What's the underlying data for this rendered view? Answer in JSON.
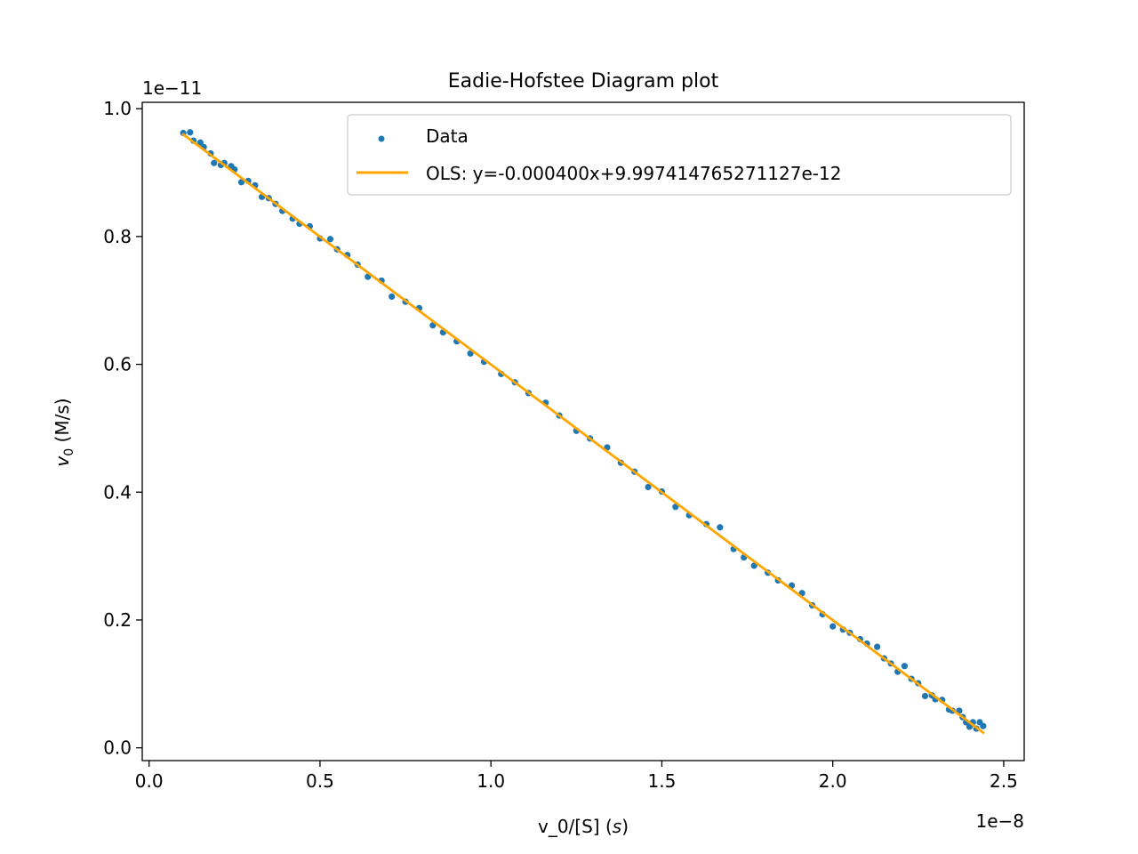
{
  "chart_data": {
    "type": "scatter",
    "title": "Eadie-Hofstee Diagram plot",
    "xlabel": "v_0/[S] (",
    "xlabel_italic": "s",
    "xlabel_close": ")",
    "ylabel_v": "v",
    "ylabel_sub": "0",
    "ylabel_unit": " (M/s)",
    "x_offset_text": "1e−8",
    "y_offset_text": "1e−11",
    "xlim": [
      -0.02,
      2.56
    ],
    "ylim": [
      -0.02,
      1.01
    ],
    "x_ticks": [
      0.0,
      0.5,
      1.0,
      1.5,
      2.0,
      2.5
    ],
    "x_tick_labels": [
      "0.0",
      "0.5",
      "1.0",
      "1.5",
      "2.0",
      "2.5"
    ],
    "y_ticks": [
      0.0,
      0.2,
      0.4,
      0.6,
      0.8,
      1.0
    ],
    "y_tick_labels": [
      "0.0",
      "0.2",
      "0.4",
      "0.6",
      "0.8",
      "1.0"
    ],
    "x_scale_note": "x values in units of 1e-8",
    "y_scale_note": "y values in units of 1e-11",
    "grid": false,
    "legend_position": "top-right",
    "series": [
      {
        "name": "Data",
        "kind": "scatter",
        "color": "#1f77b4",
        "points": [
          [
            0.1,
            0.962
          ],
          [
            0.12,
            0.963
          ],
          [
            0.13,
            0.95
          ],
          [
            0.15,
            0.947
          ],
          [
            0.16,
            0.94
          ],
          [
            0.18,
            0.93
          ],
          [
            0.19,
            0.915
          ],
          [
            0.21,
            0.912
          ],
          [
            0.22,
            0.915
          ],
          [
            0.24,
            0.91
          ],
          [
            0.25,
            0.905
          ],
          [
            0.27,
            0.885
          ],
          [
            0.29,
            0.887
          ],
          [
            0.31,
            0.88
          ],
          [
            0.33,
            0.862
          ],
          [
            0.35,
            0.86
          ],
          [
            0.37,
            0.851
          ],
          [
            0.39,
            0.84
          ],
          [
            0.42,
            0.828
          ],
          [
            0.44,
            0.82
          ],
          [
            0.47,
            0.816
          ],
          [
            0.5,
            0.797
          ],
          [
            0.53,
            0.796
          ],
          [
            0.55,
            0.78
          ],
          [
            0.58,
            0.771
          ],
          [
            0.61,
            0.756
          ],
          [
            0.64,
            0.737
          ],
          [
            0.68,
            0.731
          ],
          [
            0.71,
            0.706
          ],
          [
            0.75,
            0.698
          ],
          [
            0.79,
            0.688
          ],
          [
            0.83,
            0.661
          ],
          [
            0.86,
            0.65
          ],
          [
            0.9,
            0.636
          ],
          [
            0.94,
            0.617
          ],
          [
            0.98,
            0.604
          ],
          [
            1.03,
            0.585
          ],
          [
            1.07,
            0.572
          ],
          [
            1.11,
            0.555
          ],
          [
            1.16,
            0.54
          ],
          [
            1.2,
            0.52
          ],
          [
            1.25,
            0.496
          ],
          [
            1.29,
            0.484
          ],
          [
            1.34,
            0.47
          ],
          [
            1.38,
            0.446
          ],
          [
            1.42,
            0.432
          ],
          [
            1.46,
            0.408
          ],
          [
            1.5,
            0.401
          ],
          [
            1.54,
            0.377
          ],
          [
            1.58,
            0.364
          ],
          [
            1.63,
            0.35
          ],
          [
            1.67,
            0.345
          ],
          [
            1.71,
            0.311
          ],
          [
            1.74,
            0.298
          ],
          [
            1.77,
            0.285
          ],
          [
            1.81,
            0.274
          ],
          [
            1.84,
            0.262
          ],
          [
            1.88,
            0.254
          ],
          [
            1.91,
            0.242
          ],
          [
            1.94,
            0.223
          ],
          [
            1.97,
            0.209
          ],
          [
            2.0,
            0.19
          ],
          [
            2.03,
            0.185
          ],
          [
            2.05,
            0.18
          ],
          [
            2.08,
            0.17
          ],
          [
            2.1,
            0.163
          ],
          [
            2.13,
            0.158
          ],
          [
            2.15,
            0.14
          ],
          [
            2.17,
            0.132
          ],
          [
            2.19,
            0.119
          ],
          [
            2.21,
            0.128
          ],
          [
            2.23,
            0.108
          ],
          [
            2.25,
            0.101
          ],
          [
            2.27,
            0.081
          ],
          [
            2.29,
            0.082
          ],
          [
            2.3,
            0.076
          ],
          [
            2.32,
            0.075
          ],
          [
            2.34,
            0.06
          ],
          [
            2.35,
            0.058
          ],
          [
            2.37,
            0.058
          ],
          [
            2.38,
            0.048
          ],
          [
            2.39,
            0.04
          ],
          [
            2.4,
            0.033
          ],
          [
            2.41,
            0.04
          ],
          [
            2.42,
            0.03
          ],
          [
            2.43,
            0.04
          ],
          [
            2.44,
            0.034
          ]
        ]
      },
      {
        "name": "OLS: y=-0.000400x+9.997414765271127e-12",
        "kind": "line",
        "color": "#ffa500",
        "x": [
          0.1,
          2.44
        ],
        "y": [
          0.9597,
          0.0238
        ]
      }
    ]
  }
}
